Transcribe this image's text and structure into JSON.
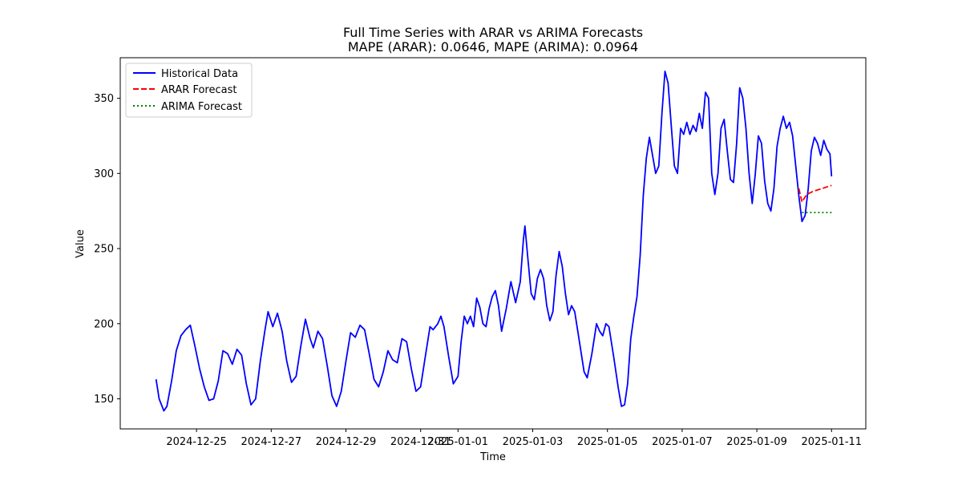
{
  "chart_data": {
    "type": "line",
    "title": "Full Time Series with ARAR vs ARIMA Forecasts",
    "subtitle": "MAPE (ARAR): 0.0646, MAPE (ARIMA): 0.0964",
    "xlabel": "Time",
    "ylabel": "Value",
    "xlim": [
      "2024-12-22T23:00",
      "2025-01-11T22:00"
    ],
    "ylim": [
      130,
      377
    ],
    "x_ticks": [
      "2024-12-25",
      "2024-12-27",
      "2024-12-29",
      "2024-12-31",
      "2025-01-01",
      "2025-01-03",
      "2025-01-05",
      "2025-01-07",
      "2025-01-09",
      "2025-01-11"
    ],
    "y_ticks": [
      150,
      200,
      250,
      300,
      350
    ],
    "grid": false,
    "legend_position": "top-left",
    "series": [
      {
        "name": "Historical Data",
        "color": "#0000ff",
        "style": "solid",
        "points": [
          [
            "2024-12-23T22:00",
            163
          ],
          [
            "2024-12-24T00:00",
            150
          ],
          [
            "2024-12-24T03:00",
            142
          ],
          [
            "2024-12-24T05:00",
            145
          ],
          [
            "2024-12-24T08:00",
            162
          ],
          [
            "2024-12-24T11:00",
            182
          ],
          [
            "2024-12-24T14:00",
            192
          ],
          [
            "2024-12-24T17:00",
            196
          ],
          [
            "2024-12-24T20:00",
            199
          ],
          [
            "2024-12-24T23:00",
            185
          ],
          [
            "2024-12-25T02:00",
            170
          ],
          [
            "2024-12-25T05:00",
            158
          ],
          [
            "2024-12-25T08:00",
            149
          ],
          [
            "2024-12-25T11:00",
            150
          ],
          [
            "2024-12-25T14:00",
            162
          ],
          [
            "2024-12-25T17:00",
            182
          ],
          [
            "2024-12-25T20:00",
            180
          ],
          [
            "2024-12-25T23:00",
            173
          ],
          [
            "2024-12-26T02:00",
            183
          ],
          [
            "2024-12-26T05:00",
            179
          ],
          [
            "2024-12-26T08:00",
            160
          ],
          [
            "2024-12-26T11:00",
            146
          ],
          [
            "2024-12-26T14:00",
            150
          ],
          [
            "2024-12-26T17:00",
            175
          ],
          [
            "2024-12-26T20:00",
            196
          ],
          [
            "2024-12-26T22:00",
            208
          ],
          [
            "2024-12-27T01:00",
            198
          ],
          [
            "2024-12-27T04:00",
            207
          ],
          [
            "2024-12-27T07:00",
            195
          ],
          [
            "2024-12-27T10:00",
            175
          ],
          [
            "2024-12-27T13:00",
            161
          ],
          [
            "2024-12-27T16:00",
            165
          ],
          [
            "2024-12-27T19:00",
            185
          ],
          [
            "2024-12-27T22:00",
            203
          ],
          [
            "2024-12-28T01:00",
            190
          ],
          [
            "2024-12-28T03:00",
            184
          ],
          [
            "2024-12-28T06:00",
            195
          ],
          [
            "2024-12-28T09:00",
            190
          ],
          [
            "2024-12-28T12:00",
            172
          ],
          [
            "2024-12-28T15:00",
            152
          ],
          [
            "2024-12-28T18:00",
            145
          ],
          [
            "2024-12-28T21:00",
            155
          ],
          [
            "2024-12-29T00:00",
            175
          ],
          [
            "2024-12-29T03:00",
            194
          ],
          [
            "2024-12-29T06:00",
            191
          ],
          [
            "2024-12-29T09:00",
            199
          ],
          [
            "2024-12-29T12:00",
            196
          ],
          [
            "2024-12-29T15:00",
            180
          ],
          [
            "2024-12-29T18:00",
            163
          ],
          [
            "2024-12-29T21:00",
            158
          ],
          [
            "2024-12-30T00:00",
            168
          ],
          [
            "2024-12-30T03:00",
            182
          ],
          [
            "2024-12-30T06:00",
            176
          ],
          [
            "2024-12-30T09:00",
            174
          ],
          [
            "2024-12-30T12:00",
            190
          ],
          [
            "2024-12-30T15:00",
            188
          ],
          [
            "2024-12-30T18:00",
            170
          ],
          [
            "2024-12-30T21:00",
            155
          ],
          [
            "2024-12-31T00:00",
            158
          ],
          [
            "2024-12-31T03:00",
            178
          ],
          [
            "2024-12-31T06:00",
            198
          ],
          [
            "2024-12-31T08:00",
            196
          ],
          [
            "2024-12-31T11:00",
            200
          ],
          [
            "2024-12-31T13:00",
            205
          ],
          [
            "2024-12-31T15:00",
            198
          ],
          [
            "2024-12-31T18:00",
            178
          ],
          [
            "2024-12-31T21:00",
            160
          ],
          [
            "2025-01-01T00:00",
            165
          ],
          [
            "2025-01-01T02:00",
            188
          ],
          [
            "2025-01-01T04:00",
            205
          ],
          [
            "2025-01-01T06:00",
            200
          ],
          [
            "2025-01-01T08:00",
            205
          ],
          [
            "2025-01-01T10:00",
            198
          ],
          [
            "2025-01-01T12:00",
            217
          ],
          [
            "2025-01-01T14:00",
            211
          ],
          [
            "2025-01-01T16:00",
            200
          ],
          [
            "2025-01-01T18:00",
            198
          ],
          [
            "2025-01-01T20:00",
            210
          ],
          [
            "2025-01-01T22:00",
            218
          ],
          [
            "2025-01-02T00:00",
            222
          ],
          [
            "2025-01-02T02:00",
            212
          ],
          [
            "2025-01-02T04:00",
            195
          ],
          [
            "2025-01-02T07:00",
            210
          ],
          [
            "2025-01-02T10:00",
            228
          ],
          [
            "2025-01-02T13:00",
            214
          ],
          [
            "2025-01-02T16:00",
            228
          ],
          [
            "2025-01-02T18:00",
            256
          ],
          [
            "2025-01-02T19:00",
            265
          ],
          [
            "2025-01-02T21:00",
            242
          ],
          [
            "2025-01-02T23:00",
            220
          ],
          [
            "2025-01-03T01:00",
            216
          ],
          [
            "2025-01-03T03:00",
            230
          ],
          [
            "2025-01-03T05:00",
            236
          ],
          [
            "2025-01-03T07:00",
            230
          ],
          [
            "2025-01-03T09:00",
            212
          ],
          [
            "2025-01-03T11:00",
            202
          ],
          [
            "2025-01-03T13:00",
            208
          ],
          [
            "2025-01-03T15:00",
            232
          ],
          [
            "2025-01-03T17:00",
            248
          ],
          [
            "2025-01-03T19:00",
            238
          ],
          [
            "2025-01-03T21:00",
            220
          ],
          [
            "2025-01-03T23:00",
            206
          ],
          [
            "2025-01-04T01:00",
            212
          ],
          [
            "2025-01-04T03:00",
            208
          ],
          [
            "2025-01-04T06:00",
            188
          ],
          [
            "2025-01-04T09:00",
            168
          ],
          [
            "2025-01-04T11:00",
            164
          ],
          [
            "2025-01-04T14:00",
            180
          ],
          [
            "2025-01-04T17:00",
            200
          ],
          [
            "2025-01-04T19:00",
            195
          ],
          [
            "2025-01-04T21:00",
            192
          ],
          [
            "2025-01-04T23:00",
            200
          ],
          [
            "2025-01-05T01:00",
            198
          ],
          [
            "2025-01-05T04:00",
            178
          ],
          [
            "2025-01-05T07:00",
            157
          ],
          [
            "2025-01-05T09:00",
            145
          ],
          [
            "2025-01-05T11:00",
            146
          ],
          [
            "2025-01-05T13:00",
            160
          ],
          [
            "2025-01-05T15:00",
            190
          ],
          [
            "2025-01-05T17:00",
            205
          ],
          [
            "2025-01-05T19:00",
            218
          ],
          [
            "2025-01-05T21:00",
            245
          ],
          [
            "2025-01-05T23:00",
            285
          ],
          [
            "2025-01-06T01:00",
            310
          ],
          [
            "2025-01-06T03:00",
            324
          ],
          [
            "2025-01-06T05:00",
            312
          ],
          [
            "2025-01-06T07:00",
            300
          ],
          [
            "2025-01-06T09:00",
            305
          ],
          [
            "2025-01-06T11:00",
            340
          ],
          [
            "2025-01-06T13:00",
            368
          ],
          [
            "2025-01-06T15:00",
            360
          ],
          [
            "2025-01-06T17:00",
            332
          ],
          [
            "2025-01-06T19:00",
            305
          ],
          [
            "2025-01-06T21:00",
            300
          ],
          [
            "2025-01-06T23:00",
            330
          ],
          [
            "2025-01-07T01:00",
            326
          ],
          [
            "2025-01-07T03:00",
            334
          ],
          [
            "2025-01-07T05:00",
            326
          ],
          [
            "2025-01-07T07:00",
            332
          ],
          [
            "2025-01-07T09:00",
            328
          ],
          [
            "2025-01-07T11:00",
            340
          ],
          [
            "2025-01-07T13:00",
            330
          ],
          [
            "2025-01-07T15:00",
            354
          ],
          [
            "2025-01-07T17:00",
            350
          ],
          [
            "2025-01-07T19:00",
            300
          ],
          [
            "2025-01-07T21:00",
            286
          ],
          [
            "2025-01-07T23:00",
            300
          ],
          [
            "2025-01-08T01:00",
            330
          ],
          [
            "2025-01-08T03:00",
            336
          ],
          [
            "2025-01-08T05:00",
            315
          ],
          [
            "2025-01-08T07:00",
            296
          ],
          [
            "2025-01-08T09:00",
            294
          ],
          [
            "2025-01-08T11:00",
            320
          ],
          [
            "2025-01-08T13:00",
            357
          ],
          [
            "2025-01-08T15:00",
            350
          ],
          [
            "2025-01-08T17:00",
            330
          ],
          [
            "2025-01-08T19:00",
            300
          ],
          [
            "2025-01-08T21:00",
            280
          ],
          [
            "2025-01-08T23:00",
            300
          ],
          [
            "2025-01-09T01:00",
            325
          ],
          [
            "2025-01-09T03:00",
            320
          ],
          [
            "2025-01-09T05:00",
            295
          ],
          [
            "2025-01-09T07:00",
            280
          ],
          [
            "2025-01-09T09:00",
            275
          ],
          [
            "2025-01-09T11:00",
            290
          ],
          [
            "2025-01-09T13:00",
            318
          ],
          [
            "2025-01-09T15:00",
            330
          ],
          [
            "2025-01-09T17:00",
            338
          ],
          [
            "2025-01-09T19:00",
            330
          ],
          [
            "2025-01-09T21:00",
            334
          ],
          [
            "2025-01-09T23:00",
            325
          ],
          [
            "2025-01-10T01:00",
            305
          ],
          [
            "2025-01-10T03:00",
            285
          ],
          [
            "2025-01-10T05:00",
            268
          ],
          [
            "2025-01-10T07:00",
            272
          ],
          [
            "2025-01-10T09:00",
            290
          ],
          [
            "2025-01-10T11:00",
            315
          ],
          [
            "2025-01-10T13:00",
            324
          ],
          [
            "2025-01-10T15:00",
            320
          ],
          [
            "2025-01-10T17:00",
            312
          ],
          [
            "2025-01-10T19:00",
            322
          ],
          [
            "2025-01-10T21:00",
            316
          ],
          [
            "2025-01-10T23:00",
            313
          ],
          [
            "2025-01-11T00:00",
            298
          ]
        ]
      },
      {
        "name": "ARAR Forecast",
        "color": "#ff0000",
        "style": "dashed",
        "points": [
          [
            "2025-01-10T03:00",
            290
          ],
          [
            "2025-01-10T05:00",
            281
          ],
          [
            "2025-01-10T08:00",
            286
          ],
          [
            "2025-01-10T12:00",
            288
          ],
          [
            "2025-01-10T18:00",
            290
          ],
          [
            "2025-01-11T00:00",
            292
          ]
        ]
      },
      {
        "name": "ARIMA Forecast",
        "color": "#008000",
        "style": "dotted",
        "points": [
          [
            "2025-01-10T05:00",
            274
          ],
          [
            "2025-01-11T00:00",
            274
          ]
        ]
      }
    ]
  }
}
